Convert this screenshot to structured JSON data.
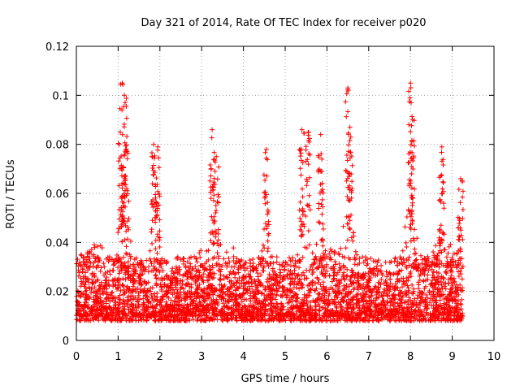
{
  "chart_data": {
    "type": "scatter",
    "title": "Day 321 of 2014, Rate Of TEC Index for receiver p020",
    "xlabel": "GPS time / hours",
    "ylabel": "ROTI / TECUs",
    "xlim": [
      0,
      10
    ],
    "ylim": [
      0,
      0.12
    ],
    "xticks": [
      0,
      1,
      2,
      3,
      4,
      5,
      6,
      7,
      8,
      9,
      10
    ],
    "xtick_labels": [
      "0",
      "1",
      "2",
      "3",
      "4",
      "5",
      "6",
      "7",
      "8",
      "9",
      "10"
    ],
    "yticks": [
      0,
      0.02,
      0.04,
      0.06,
      0.08,
      0.1,
      0.12
    ],
    "ytick_labels": [
      "0",
      "0.02",
      "0.04",
      "0.06",
      "0.08",
      "0.1",
      "0.12"
    ],
    "grid": true,
    "marker": "plus",
    "color": "#ff0000",
    "series": [
      {
        "name": "ROTI",
        "x_range": [
          0.0,
          9.25
        ],
        "baseline_band": [
          0.005,
          0.03
        ],
        "peaks": [
          {
            "x": 1.05,
            "y": 0.085
          },
          {
            "x": 1.1,
            "y": 0.105
          },
          {
            "x": 1.15,
            "y": 0.1
          },
          {
            "x": 1.2,
            "y": 0.078
          },
          {
            "x": 1.85,
            "y": 0.08
          },
          {
            "x": 1.95,
            "y": 0.079
          },
          {
            "x": 3.25,
            "y": 0.086
          },
          {
            "x": 3.35,
            "y": 0.075
          },
          {
            "x": 4.55,
            "y": 0.078
          },
          {
            "x": 5.4,
            "y": 0.086
          },
          {
            "x": 5.55,
            "y": 0.085
          },
          {
            "x": 5.85,
            "y": 0.084
          },
          {
            "x": 6.5,
            "y": 0.103
          },
          {
            "x": 6.55,
            "y": 0.087
          },
          {
            "x": 8.0,
            "y": 0.105
          },
          {
            "x": 8.05,
            "y": 0.09
          },
          {
            "x": 8.75,
            "y": 0.079
          },
          {
            "x": 9.2,
            "y": 0.066
          }
        ]
      }
    ]
  }
}
